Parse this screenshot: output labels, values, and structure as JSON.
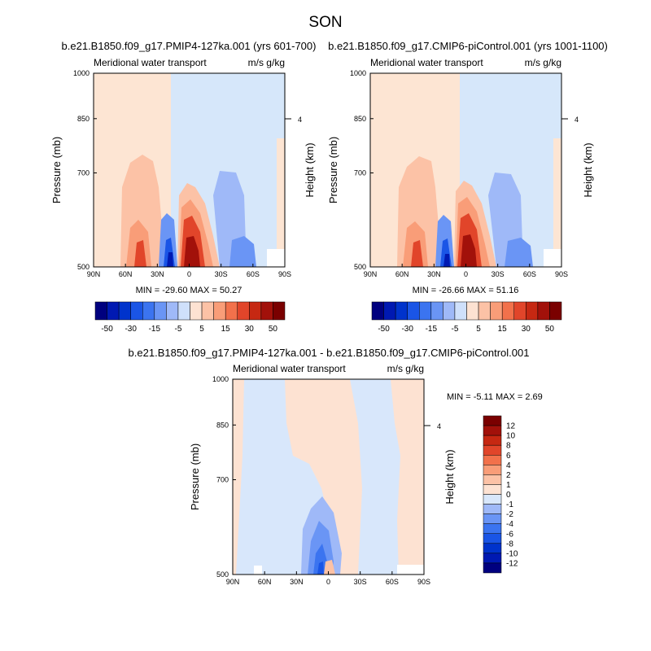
{
  "figure": {
    "title": "SON"
  },
  "chart_data": [
    {
      "type": "heatmap",
      "title": "b.e21.B1850.f09_g17.PMIP4-127ka.001 (yrs 601-700)",
      "left_label": "Meridional water transport",
      "right_label": "m/s g/kg",
      "xlabel": "",
      "ylabel": "Pressure (mb)",
      "y2label": "Height (km)",
      "x_ticks": [
        "90N",
        "60N",
        "30N",
        "0",
        "30S",
        "60S",
        "90S"
      ],
      "y_ticks": [
        "500",
        "700",
        "850",
        "1000"
      ],
      "y2_ticks": [
        "4"
      ],
      "ylim": [
        1000,
        500
      ],
      "stats": "MIN = -29.60  MAX = 50.27",
      "min": -29.6,
      "max": 50.27,
      "colorbar_labels": [
        "-50",
        "-30",
        "-15",
        "-5",
        "5",
        "15",
        "30",
        "50"
      ]
    },
    {
      "type": "heatmap",
      "title": "b.e21.B1850.f09_g17.CMIP6-piControl.001 (yrs 1001-1100)",
      "left_label": "Meridional water transport",
      "right_label": "m/s g/kg",
      "xlabel": "",
      "ylabel": "Pressure (mb)",
      "y2label": "Height (km)",
      "x_ticks": [
        "90N",
        "60N",
        "30N",
        "0",
        "30S",
        "60S",
        "90S"
      ],
      "y_ticks": [
        "500",
        "700",
        "850",
        "1000"
      ],
      "y2_ticks": [
        "4"
      ],
      "ylim": [
        1000,
        500
      ],
      "stats": "MIN = -26.66  MAX = 51.16",
      "min": -26.66,
      "max": 51.16,
      "colorbar_labels": [
        "-50",
        "-30",
        "-15",
        "-5",
        "5",
        "15",
        "30",
        "50"
      ]
    },
    {
      "type": "heatmap",
      "title": "b.e21.B1850.f09_g17.PMIP4-127ka.001 - b.e21.B1850.f09_g17.CMIP6-piControl.001",
      "left_label": "Meridional water transport",
      "right_label": "m/s g/kg",
      "xlabel": "",
      "ylabel": "Pressure (mb)",
      "y2label": "Height (km)",
      "x_ticks": [
        "90N",
        "60N",
        "30N",
        "0",
        "30S",
        "60S",
        "90S"
      ],
      "y_ticks": [
        "500",
        "700",
        "850",
        "1000"
      ],
      "y2_ticks": [
        "4"
      ],
      "ylim": [
        1000,
        500
      ],
      "stats": "MIN =  -5.11  MAX =   2.69",
      "min": -5.11,
      "max": 2.69,
      "colorbar_labels": [
        "12",
        "10",
        "8",
        "6",
        "4",
        "2",
        "1",
        "0",
        "-1",
        "-2",
        "-4",
        "-6",
        "-8",
        "-10",
        "-12"
      ]
    }
  ],
  "colors": {
    "main_scale": [
      "#00007f",
      "#0019b2",
      "#0033cc",
      "#1a55e6",
      "#3b74f0",
      "#6a95f5",
      "#9fb9f8",
      "#cfe0fb",
      "#fde2d2",
      "#fcc2a6",
      "#f99d78",
      "#f2714b",
      "#e1452a",
      "#c62812",
      "#a2110a",
      "#7a0000"
    ],
    "diff_scale": [
      "#7a0000",
      "#a2110a",
      "#c62812",
      "#e1452a",
      "#f2714b",
      "#f99d78",
      "#fcc2a6",
      "#fde2d2",
      "#d8e7fb",
      "#9fb9f8",
      "#6a95f5",
      "#3b74f0",
      "#1a55e6",
      "#0033cc",
      "#0019b2",
      "#00007f"
    ],
    "background_positive": "#fde5d3",
    "background_negative": "#d6e7fa"
  }
}
